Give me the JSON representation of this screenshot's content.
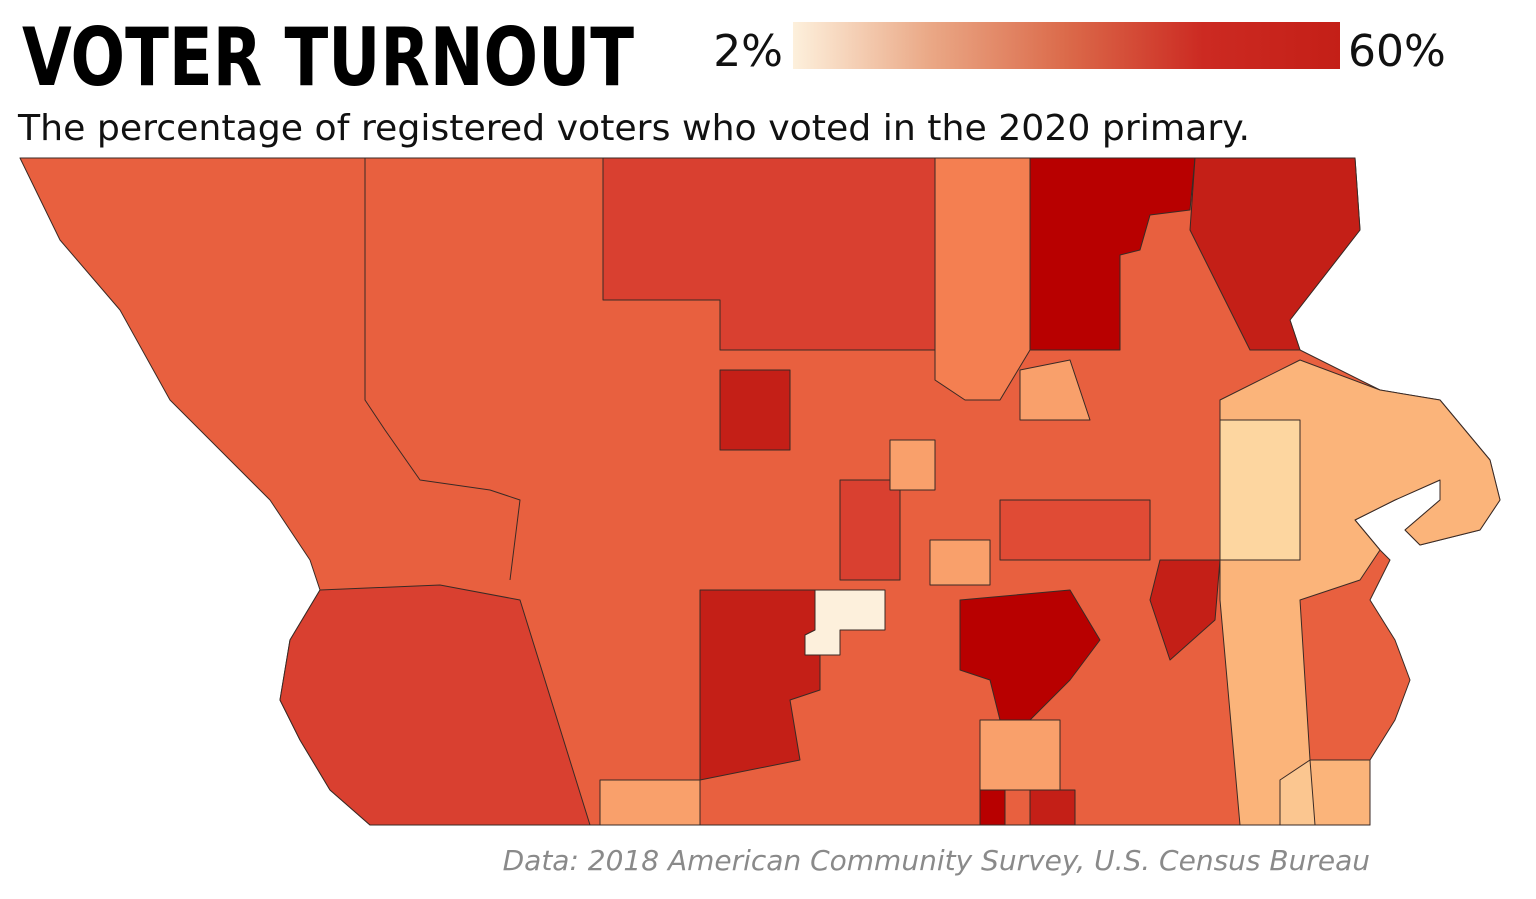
{
  "title": "VOTER TURNOUT",
  "subtitle": "The percentage of registered voters who voted in the 2020 primary.",
  "legend": {
    "min": {
      "value": 2,
      "label": "2%"
    },
    "max": {
      "value": 60,
      "label": "60%"
    },
    "colors": [
      "#fdf0dc",
      "#eaa886",
      "#db6a4a",
      "#cc2a22",
      "#c41f17"
    ]
  },
  "source": "Data: 2018 American Community Survey, U.S. Census Bureau"
}
